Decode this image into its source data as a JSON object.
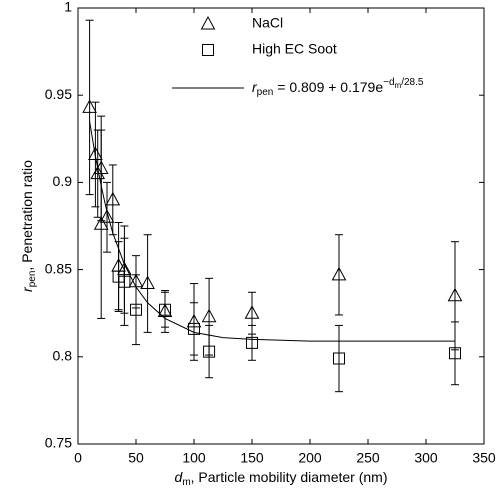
{
  "chart_data": {
    "type": "scatter",
    "xlabel_parts": [
      {
        "text": "d",
        "style": "italic"
      },
      {
        "text": "m",
        "style": "sub"
      },
      {
        "text": ", Particle mobility diameter (nm)",
        "style": "normal"
      }
    ],
    "ylabel_parts": [
      {
        "text": "r",
        "style": "italic"
      },
      {
        "text": "pen",
        "style": "sub"
      },
      {
        "text": ", Penetration ratio",
        "style": "normal"
      }
    ],
    "xlim": [
      0,
      350
    ],
    "xticks": [
      0,
      50,
      100,
      150,
      200,
      250,
      300,
      350
    ],
    "ylim": [
      0.75,
      1
    ],
    "yticks": [
      0.75,
      0.8,
      0.85,
      0.9,
      0.95,
      1
    ],
    "series": [
      {
        "name": "NaCl",
        "marker": "triangle",
        "color": "#000000",
        "x": [
          10,
          15,
          17,
          20,
          20,
          25,
          30,
          35,
          40,
          50,
          60,
          75,
          100,
          113,
          150,
          225,
          325
        ],
        "values": [
          0.943,
          0.916,
          0.905,
          0.908,
          0.876,
          0.88,
          0.89,
          0.852,
          0.85,
          0.843,
          0.842,
          0.826,
          0.82,
          0.823,
          0.825,
          0.847,
          0.835
        ],
        "errors": [
          0.05,
          0.03,
          0.025,
          0.03,
          0.054,
          0.02,
          0.02,
          0.025,
          0.025,
          0.015,
          0.028,
          0.012,
          0.022,
          0.022,
          0.012,
          0.023,
          0.031
        ]
      },
      {
        "name": "High EC Soot",
        "marker": "square",
        "color": "#000000",
        "x": [
          35,
          40,
          50,
          75,
          100,
          113,
          150,
          225,
          325
        ],
        "values": [
          0.846,
          0.843,
          0.827,
          0.827,
          0.816,
          0.803,
          0.808,
          0.799,
          0.802
        ],
        "errors": [
          0.02,
          0.025,
          0.02,
          0.01,
          0.015,
          0.015,
          0.01,
          0.019,
          0.018
        ]
      },
      {
        "type": "line",
        "color": "#000000",
        "label_parts": [
          {
            "text": "r",
            "style": "italic"
          },
          {
            "text": "pen",
            "style": "sub"
          },
          {
            "text": " = 0.809 + 0.179e",
            "style": "normal"
          },
          {
            "text": "−d",
            "style": "sup"
          },
          {
            "text": "m",
            "style": "supsub"
          },
          {
            "text": "/28.5",
            "style": "sup"
          }
        ],
        "x": [
          10,
          15,
          20,
          25,
          30,
          40,
          50,
          60,
          75,
          100,
          125,
          150,
          200,
          250,
          325
        ],
        "values": [
          0.935,
          0.915,
          0.898,
          0.883,
          0.871,
          0.853,
          0.84,
          0.831,
          0.822,
          0.814,
          0.811,
          0.81,
          0.809,
          0.809,
          0.809
        ]
      }
    ]
  }
}
